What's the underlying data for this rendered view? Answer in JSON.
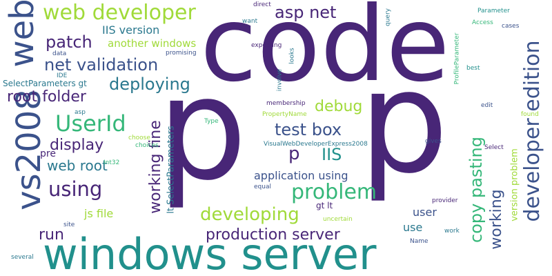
{
  "words": [
    {
      "text": "code",
      "color": "#482677",
      "rot": false
    },
    {
      "text": "p",
      "color": "#482677",
      "rot": false
    },
    {
      "text": "p",
      "color": "#482677",
      "rot": false
    },
    {
      "text": "windows server",
      "color": "#21908c",
      "rot": false
    },
    {
      "text": "vs2008",
      "color": "#3b528b",
      "rot": true
    },
    {
      "text": "web",
      "color": "#3b528b",
      "rot": true
    },
    {
      "text": "web developer",
      "color": "#a0da39",
      "rot": false
    },
    {
      "text": "developer edition",
      "color": "#3b528b",
      "rot": true
    },
    {
      "text": "asp net",
      "color": "#482677",
      "rot": false
    },
    {
      "text": "IIS version",
      "color": "#2a788e",
      "rot": false
    },
    {
      "text": "patch",
      "color": "#482677",
      "rot": false
    },
    {
      "text": "another windows",
      "color": "#a0da39",
      "rot": false
    },
    {
      "text": "net validation",
      "color": "#3b528b",
      "rot": false
    },
    {
      "text": "deploying",
      "color": "#2a788e",
      "rot": false
    },
    {
      "text": "root folder",
      "color": "#482677",
      "rot": false
    },
    {
      "text": "debug",
      "color": "#a0da39",
      "rot": false
    },
    {
      "text": "UserId",
      "color": "#35b779",
      "rot": false
    },
    {
      "text": "working fine",
      "color": "#482677",
      "rot": true
    },
    {
      "text": "test box",
      "color": "#3b528b",
      "rot": false
    },
    {
      "text": "display",
      "color": "#482677",
      "rot": false
    },
    {
      "text": "pre",
      "color": "#482677",
      "rot": false
    },
    {
      "text": "web root",
      "color": "#2a788e",
      "rot": false
    },
    {
      "text": "p",
      "color": "#482677",
      "rot": false
    },
    {
      "text": "IIS",
      "color": "#21908c",
      "rot": false
    },
    {
      "text": "using",
      "color": "#482677",
      "rot": false
    },
    {
      "text": "application using",
      "color": "#3b528b",
      "rot": false
    },
    {
      "text": "problem",
      "color": "#35b779",
      "rot": false
    },
    {
      "text": "copy pasting",
      "color": "#35b779",
      "rot": true
    },
    {
      "text": "working",
      "color": "#3b528b",
      "rot": true
    },
    {
      "text": "version problem",
      "color": "#a0da39",
      "rot": true
    },
    {
      "text": "lt SelectParameters",
      "color": "#2a788e",
      "rot": true
    },
    {
      "text": "js file",
      "color": "#a0da39",
      "rot": false
    },
    {
      "text": "developing",
      "color": "#a0da39",
      "rot": false
    },
    {
      "text": "gt lt",
      "color": "#482677",
      "rot": false
    },
    {
      "text": "run",
      "color": "#482677",
      "rot": false
    },
    {
      "text": "production server",
      "color": "#482677",
      "rot": false
    },
    {
      "text": "user",
      "color": "#3b528b",
      "rot": false
    },
    {
      "text": "use",
      "color": "#2a788e",
      "rot": false
    },
    {
      "text": "direct",
      "color": "#482677",
      "rot": false
    },
    {
      "text": "want",
      "color": "#2a788e",
      "rot": false
    },
    {
      "text": "Parameter",
      "color": "#21908c",
      "rot": false
    },
    {
      "text": "Access",
      "color": "#35b779",
      "rot": false
    },
    {
      "text": "cases",
      "color": "#3b528b",
      "rot": false
    },
    {
      "text": "expecting",
      "color": "#482677",
      "rot": false
    },
    {
      "text": "promising",
      "color": "#3b528b",
      "rot": false
    },
    {
      "text": "data",
      "color": "#3b528b",
      "rot": false
    },
    {
      "text": "IDE",
      "color": "#2a788e",
      "rot": false
    },
    {
      "text": "SelectParameters gt",
      "color": "#2a788e",
      "rot": false
    },
    {
      "text": "best",
      "color": "#21908c",
      "rot": false
    },
    {
      "text": "membership",
      "color": "#482677",
      "rot": false
    },
    {
      "text": "edit",
      "color": "#3b528b",
      "rot": false
    },
    {
      "text": "asp",
      "color": "#2a788e",
      "rot": false
    },
    {
      "text": "PropertyName",
      "color": "#a0da39",
      "rot": false
    },
    {
      "text": "Type",
      "color": "#35b779",
      "rot": false
    },
    {
      "text": "choices",
      "color": "#35b779",
      "rot": false
    },
    {
      "text": "choose",
      "color": "#a0da39",
      "rot": false
    },
    {
      "text": "VisualWebDeveloperExpress2008",
      "color": "#2a788e",
      "rot": false
    },
    {
      "text": "gives",
      "color": "#3b528b",
      "rot": false
    },
    {
      "text": "Select",
      "color": "#482677",
      "rot": false
    },
    {
      "text": "Int32",
      "color": "#35b779",
      "rot": false
    },
    {
      "text": "equal",
      "color": "#3b528b",
      "rot": false
    },
    {
      "text": "provider",
      "color": "#482677",
      "rot": false
    },
    {
      "text": "site",
      "color": "#3b528b",
      "rot": false
    },
    {
      "text": "uncertain",
      "color": "#a0da39",
      "rot": false
    },
    {
      "text": "work",
      "color": "#2a788e",
      "rot": false
    },
    {
      "text": "Name",
      "color": "#3b528b",
      "rot": false
    },
    {
      "text": "several",
      "color": "#2a788e",
      "rot": false
    },
    {
      "text": "found",
      "color": "#a0da39",
      "rot": false
    },
    {
      "text": "query",
      "color": "#2a788e",
      "rot": true
    },
    {
      "text": "looks",
      "color": "#2a788e",
      "rot": true
    },
    {
      "text": "involve",
      "color": "#2a788e",
      "rot": true
    },
    {
      "text": "ProfileParameter",
      "color": "#35b779",
      "rot": true
    }
  ]
}
